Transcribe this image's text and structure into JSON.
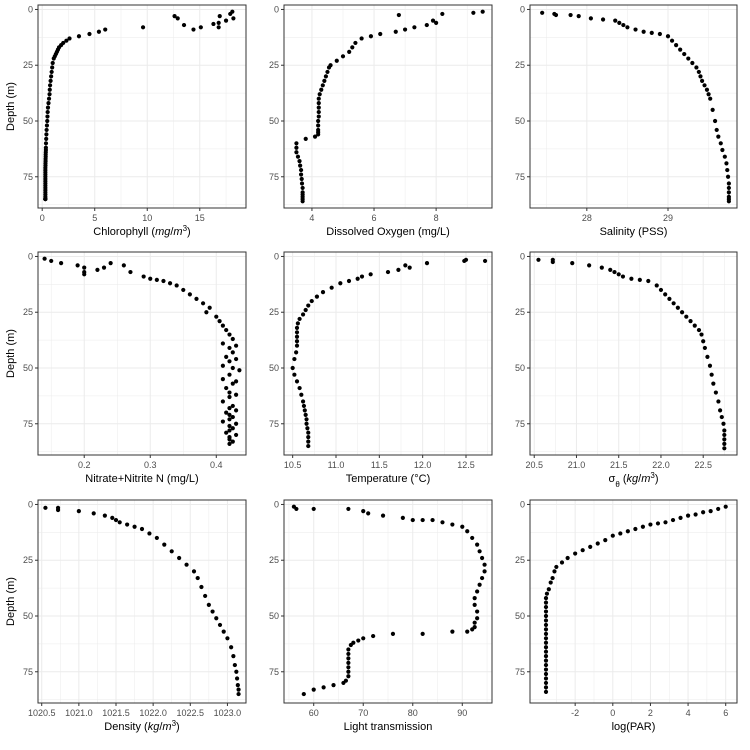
{
  "figure": {
    "background": "#ffffff",
    "grid_color": "#ebebeb",
    "border_color": "#333333",
    "point_color": "#000000"
  },
  "chart_data": [
    {
      "id": "chlorophyll",
      "type": "scatter",
      "ylabel": "Depth (m)",
      "xlabel": "Chlorophyll",
      "xlabel_unit": {
        "base": "mg",
        "sep": "/",
        "unit": "m",
        "sup": "3"
      },
      "xlim": [
        -0.4,
        19.4
      ],
      "ylim": [
        -2,
        89
      ],
      "y_reversed": true,
      "xticks": [
        0,
        5,
        10,
        15
      ],
      "xticklabels": [
        "0",
        "5",
        "10",
        "15"
      ],
      "yticks": [
        0,
        25,
        50,
        75
      ],
      "yticklabels": [
        "0",
        "25",
        "50",
        "75"
      ],
      "x": [
        18.1,
        17.9,
        16.9,
        18.2,
        12.6,
        12.9,
        17.5,
        16.8,
        16.3,
        13.5,
        15.1,
        14.4,
        16.8,
        6.0,
        9.6,
        5.4,
        4.5,
        3.5,
        2.6,
        2.3,
        2.0,
        1.8,
        1.6,
        1.5,
        1.4,
        1.3,
        1.2,
        1.1,
        1.0,
        0.95,
        0.9,
        0.85,
        0.8,
        0.75,
        0.72,
        0.7,
        0.65,
        0.6,
        0.55,
        0.52,
        0.5,
        0.48,
        0.45,
        0.42,
        0.4,
        0.38,
        0.36,
        0.35,
        0.35,
        0.34,
        0.33,
        0.33,
        0.32,
        0.32,
        0.31,
        0.31,
        0.3,
        0.3,
        0.3,
        0.3,
        0.3,
        0.3,
        0.3,
        0.3,
        0.3,
        0.3,
        0.3,
        0.3,
        0.3,
        0.3,
        0.3,
        0.3,
        0.3,
        0.3,
        0.3
      ],
      "y": [
        1,
        2,
        3,
        4,
        3,
        4,
        5,
        6,
        6.5,
        7,
        8,
        9,
        8,
        9,
        8,
        10,
        11,
        12,
        13,
        14,
        15,
        16,
        17,
        18,
        19,
        20,
        21,
        22,
        24,
        26,
        28,
        30,
        32,
        34,
        36,
        38,
        40,
        42,
        44,
        46,
        48,
        50,
        52,
        54,
        56,
        58,
        60,
        62,
        63,
        64,
        65,
        66,
        67,
        68,
        69,
        70,
        71,
        72,
        73,
        74,
        75,
        76,
        77,
        78,
        79,
        80,
        81,
        82,
        83,
        84,
        85,
        85,
        85,
        85,
        85
      ]
    },
    {
      "id": "oxygen",
      "type": "scatter",
      "xlabel": "Dissolved Oxygen (mg/L)",
      "xlim": [
        3.1,
        9.8
      ],
      "ylim": [
        -2,
        89
      ],
      "y_reversed": true,
      "xticks": [
        4,
        6,
        8
      ],
      "xticklabels": [
        "4",
        "6",
        "8"
      ],
      "yticks": [
        0,
        25,
        50,
        75
      ],
      "yticklabels": [
        "0",
        "25",
        "50",
        "75"
      ],
      "x": [
        9.5,
        9.2,
        8.2,
        6.8,
        7.9,
        8.0,
        7.7,
        7.3,
        7.0,
        6.7,
        6.2,
        5.9,
        5.6,
        5.4,
        5.3,
        5.2,
        5.0,
        4.8,
        4.6,
        4.55,
        4.5,
        4.45,
        4.4,
        4.35,
        4.3,
        4.25,
        4.22,
        4.22,
        4.22,
        4.22,
        4.22,
        4.2,
        4.2,
        4.2,
        4.2,
        4.2,
        4.1,
        3.8,
        3.5,
        3.5,
        3.5,
        3.55,
        3.6,
        3.62,
        3.65,
        3.65,
        3.67,
        3.68,
        3.7,
        3.7,
        3.7,
        3.7,
        3.7,
        3.7
      ],
      "y": [
        1,
        1.5,
        2,
        2.5,
        5,
        6,
        7,
        8,
        9,
        10,
        11,
        12,
        13,
        15,
        17,
        19,
        21,
        23,
        25,
        26,
        28,
        30,
        32,
        34,
        36,
        38,
        40,
        42,
        44,
        46,
        48,
        50,
        52,
        54,
        55,
        56,
        57,
        58,
        60,
        62,
        64,
        66,
        68,
        70,
        72,
        74,
        76,
        78,
        80,
        82,
        83,
        84,
        85,
        86
      ]
    },
    {
      "id": "salinity",
      "type": "scatter",
      "xlabel": "Salinity (PSS)",
      "xlim": [
        27.3,
        29.85
      ],
      "ylim": [
        -2,
        89
      ],
      "y_reversed": true,
      "xticks": [
        28,
        29
      ],
      "xticklabels": [
        "28",
        "29"
      ],
      "yticks": [
        0,
        25,
        50,
        75
      ],
      "yticklabels": [
        "0",
        "25",
        "50",
        "75"
      ],
      "x": [
        27.45,
        27.6,
        27.62,
        27.8,
        27.9,
        28.05,
        28.2,
        28.35,
        28.4,
        28.45,
        28.5,
        28.6,
        28.7,
        28.8,
        28.9,
        29.0,
        29.05,
        29.1,
        29.15,
        29.2,
        29.25,
        29.3,
        29.35,
        29.38,
        29.4,
        29.42,
        29.45,
        29.48,
        29.5,
        29.52,
        29.55,
        29.58,
        29.6,
        29.62,
        29.65,
        29.67,
        29.7,
        29.72,
        29.73,
        29.74,
        29.75,
        29.75,
        29.75,
        29.75,
        29.75,
        29.75
      ],
      "y": [
        1.5,
        2,
        2.5,
        2.5,
        3,
        4,
        4.5,
        5,
        6,
        7,
        8,
        9,
        10,
        10.5,
        11,
        12,
        14,
        16,
        18,
        20,
        22,
        24,
        26,
        28,
        30,
        32,
        34,
        36,
        38,
        40,
        45,
        50,
        54,
        57,
        60,
        63,
        66,
        69,
        72,
        75,
        78,
        80,
        82,
        84,
        85,
        86
      ]
    },
    {
      "id": "nitrate",
      "type": "scatter",
      "ylabel": "Depth (m)",
      "xlabel": "Nitrate+Nitrite N (mg/L)",
      "xlim": [
        0.13,
        0.445
      ],
      "ylim": [
        -2,
        89
      ],
      "y_reversed": true,
      "xticks": [
        0.2,
        0.3,
        0.4
      ],
      "xticklabels": [
        "0.2",
        "0.3",
        "0.4"
      ],
      "yticks": [
        0,
        25,
        50,
        75
      ],
      "yticklabels": [
        "0",
        "25",
        "50",
        "75"
      ],
      "x": [
        0.14,
        0.15,
        0.165,
        0.19,
        0.2,
        0.24,
        0.23,
        0.26,
        0.22,
        0.2,
        0.2,
        0.27,
        0.29,
        0.3,
        0.31,
        0.32,
        0.33,
        0.34,
        0.35,
        0.36,
        0.37,
        0.38,
        0.39,
        0.385,
        0.4,
        0.405,
        0.41,
        0.415,
        0.42,
        0.425,
        0.41,
        0.43,
        0.42,
        0.425,
        0.415,
        0.43,
        0.42,
        0.41,
        0.425,
        0.435,
        0.42,
        0.41,
        0.43,
        0.425,
        0.415,
        0.42,
        0.43,
        0.42,
        0.41,
        0.425,
        0.42,
        0.43,
        0.415,
        0.42,
        0.425,
        0.42,
        0.41,
        0.43,
        0.42,
        0.425,
        0.42,
        0.415,
        0.43,
        0.42,
        0.42,
        0.425,
        0.42
      ],
      "y": [
        1,
        2,
        3,
        4,
        5,
        3,
        5,
        4,
        6,
        7,
        8,
        7,
        9,
        10,
        10.5,
        11,
        12,
        13,
        15,
        17,
        19,
        21,
        23,
        25,
        27,
        29,
        31,
        33,
        35,
        37,
        39,
        40,
        41,
        43,
        45,
        46,
        47,
        49,
        50,
        51,
        53,
        55,
        56,
        57,
        59,
        61,
        62,
        63,
        65,
        67,
        68,
        69,
        70,
        71,
        72,
        73,
        74,
        75,
        76,
        77,
        78,
        79,
        80,
        81,
        82,
        83,
        84
      ]
    },
    {
      "id": "temperature",
      "type": "scatter",
      "xlabel": "Temperature (°C)",
      "xlim": [
        10.4,
        12.8
      ],
      "ylim": [
        -2,
        89
      ],
      "y_reversed": true,
      "xticks": [
        10.5,
        11.0,
        11.5,
        12.0,
        12.5
      ],
      "xticklabels": [
        "10.5",
        "11.0",
        "11.5",
        "12.0",
        "12.5"
      ],
      "yticks": [
        0,
        25,
        50,
        75
      ],
      "yticklabels": [
        "0",
        "25",
        "50",
        "75"
      ],
      "x": [
        12.72,
        12.5,
        12.48,
        12.05,
        11.8,
        11.85,
        11.72,
        11.6,
        11.4,
        11.3,
        11.25,
        11.15,
        11.05,
        10.95,
        10.85,
        10.78,
        10.72,
        10.68,
        10.65,
        10.62,
        10.58,
        10.56,
        10.55,
        10.55,
        10.55,
        10.55,
        10.55,
        10.54,
        10.52,
        10.5,
        10.52,
        10.55,
        10.58,
        10.6,
        10.62,
        10.63,
        10.64,
        10.65,
        10.66,
        10.66,
        10.67,
        10.68,
        10.68,
        10.68,
        10.68
      ],
      "y": [
        2,
        1.5,
        2,
        3,
        4,
        5,
        6,
        7,
        8,
        9,
        10,
        11,
        12,
        14,
        16,
        18,
        20,
        22,
        24,
        26,
        28,
        30,
        32,
        34,
        36,
        38,
        40,
        43,
        46,
        50,
        53,
        56,
        59,
        62,
        65,
        67,
        69,
        71,
        73,
        75,
        77,
        79,
        81,
        83,
        85
      ]
    },
    {
      "id": "sigma",
      "type": "scatter",
      "xlabel_unit": {
        "base": "σ",
        "sub": "θ",
        "sep": " ",
        "pre_unit": "kg",
        "slash": "/",
        "unit": "m",
        "sup": "3"
      },
      "xlim": [
        20.45,
        22.9
      ],
      "ylim": [
        -2,
        89
      ],
      "y_reversed": true,
      "xticks": [
        20.5,
        21.0,
        21.5,
        22.0,
        22.5
      ],
      "xticklabels": [
        "20.5",
        "21.0",
        "21.5",
        "22.0",
        "22.5"
      ],
      "yticks": [
        0,
        25,
        50,
        75
      ],
      "yticklabels": [
        "0",
        "25",
        "50",
        "75"
      ],
      "x": [
        20.55,
        20.72,
        20.72,
        20.95,
        21.15,
        21.3,
        21.4,
        21.45,
        21.5,
        21.55,
        21.65,
        21.75,
        21.85,
        21.95,
        22.0,
        22.05,
        22.1,
        22.15,
        22.2,
        22.25,
        22.3,
        22.35,
        22.4,
        22.45,
        22.48,
        22.5,
        22.52,
        22.55,
        22.58,
        22.6,
        22.62,
        22.65,
        22.68,
        22.7,
        22.72,
        22.74,
        22.75,
        22.75,
        22.75,
        22.75,
        22.75
      ],
      "y": [
        1.5,
        1.5,
        2.5,
        3,
        4,
        5,
        6,
        7,
        8,
        9,
        10,
        10.5,
        11,
        13,
        15,
        17,
        19,
        21,
        23,
        25,
        27,
        29,
        31,
        33,
        35,
        38,
        41,
        45,
        49,
        53,
        57,
        61,
        65,
        69,
        72,
        75,
        78,
        80,
        82,
        84,
        86
      ]
    },
    {
      "id": "density",
      "type": "scatter",
      "ylabel": "Depth (m)",
      "xlabel_unit": {
        "base": "Density",
        "sep": " ",
        "pre_unit": "kg",
        "slash": "/",
        "unit": "m",
        "sup": "3"
      },
      "xlim": [
        1020.45,
        1023.25
      ],
      "ylim": [
        -2,
        89
      ],
      "y_reversed": true,
      "xticks": [
        1020.5,
        1021.0,
        1021.5,
        1022.0,
        1022.5,
        1023.0
      ],
      "xticklabels": [
        "1020.5",
        "1021.0",
        "1021.5",
        "1022.0",
        "1022.5",
        "1023.0"
      ],
      "yticks": [
        0,
        25,
        50,
        75
      ],
      "yticklabels": [
        "0",
        "25",
        "50",
        "75"
      ],
      "x": [
        1020.55,
        1020.72,
        1020.72,
        1021.0,
        1021.2,
        1021.35,
        1021.45,
        1021.5,
        1021.55,
        1021.65,
        1021.75,
        1021.85,
        1021.95,
        1022.05,
        1022.15,
        1022.25,
        1022.35,
        1022.45,
        1022.55,
        1022.6,
        1022.65,
        1022.7,
        1022.75,
        1022.8,
        1022.85,
        1022.9,
        1022.95,
        1023.0,
        1023.05,
        1023.08,
        1023.1,
        1023.12,
        1023.13,
        1023.14,
        1023.15,
        1023.15
      ],
      "y": [
        1.5,
        1.5,
        2.5,
        3,
        4,
        5,
        6,
        7,
        8,
        9,
        10,
        11,
        13,
        15,
        18,
        21,
        24,
        27,
        30,
        33,
        37,
        41,
        45,
        48,
        51,
        54,
        57,
        60,
        64,
        68,
        72,
        75,
        78,
        81,
        83,
        85
      ]
    },
    {
      "id": "light",
      "type": "scatter",
      "xlabel": "Light transmission",
      "xlim": [
        54,
        96
      ],
      "ylim": [
        -2,
        89
      ],
      "y_reversed": true,
      "xticks": [
        60,
        70,
        80,
        90
      ],
      "xticklabels": [
        "60",
        "70",
        "80",
        "90"
      ],
      "yticks": [
        0,
        25,
        50,
        75
      ],
      "yticklabels": [
        "0",
        "25",
        "50",
        "75"
      ],
      "x": [
        56,
        56.5,
        60,
        67,
        70,
        71,
        74,
        78,
        80,
        82,
        84,
        86,
        88,
        90,
        91,
        92,
        93,
        93.5,
        94,
        94.5,
        94.5,
        94,
        93.5,
        93,
        92.5,
        92.5,
        93,
        93,
        92.5,
        92.5,
        92,
        91,
        88,
        82,
        76,
        72,
        70,
        69,
        68,
        67.5,
        67,
        67,
        67,
        67,
        67,
        67,
        67,
        66.5,
        66,
        64,
        62,
        60,
        58
      ],
      "y": [
        1,
        2,
        2,
        2,
        3,
        4,
        5,
        6,
        7,
        7,
        7,
        8,
        9,
        10,
        12,
        15,
        18,
        21,
        24,
        27,
        30,
        33,
        36,
        39,
        42,
        45,
        48,
        51,
        53,
        55,
        56,
        57,
        57,
        58,
        58,
        59,
        60,
        61,
        62,
        63,
        65,
        67,
        69,
        71,
        73,
        75,
        77,
        79,
        80,
        81,
        82,
        83,
        85
      ]
    },
    {
      "id": "par",
      "type": "scatter",
      "xlabel": "log(PAR)",
      "xlim": [
        -4.4,
        6.6
      ],
      "ylim": [
        -2,
        89
      ],
      "y_reversed": true,
      "xticks": [
        -2,
        0,
        2,
        4,
        6
      ],
      "xticklabels": [
        "-2",
        "0",
        "2",
        "4",
        "6"
      ],
      "yticks": [
        0,
        25,
        50,
        75
      ],
      "yticklabels": [
        "0",
        "25",
        "50",
        "75"
      ],
      "x": [
        6.0,
        5.6,
        5.2,
        4.8,
        4.4,
        4.0,
        3.6,
        3.2,
        2.8,
        2.4,
        2.0,
        1.6,
        1.2,
        0.8,
        0.4,
        0.0,
        -0.4,
        -0.8,
        -1.2,
        -1.6,
        -2.0,
        -2.4,
        -2.7,
        -3.0,
        -3.1,
        -3.2,
        -3.3,
        -3.4,
        -3.5,
        -3.55,
        -3.55,
        -3.55,
        -3.55,
        -3.55,
        -3.55,
        -3.55,
        -3.55,
        -3.55,
        -3.55,
        -3.55,
        -3.55,
        -3.55,
        -3.55,
        -3.55,
        -3.55,
        -3.55,
        -3.55,
        -3.55,
        -3.55,
        -3.55,
        -3.55
      ],
      "y": [
        1,
        2,
        3,
        3.5,
        4.5,
        5,
        6,
        7,
        8,
        8.5,
        9,
        10,
        11,
        12,
        13,
        14,
        16,
        17.5,
        19,
        20.5,
        22,
        24,
        26,
        28,
        30,
        33,
        35,
        38,
        40,
        42,
        44,
        46,
        48,
        50,
        52,
        54,
        56,
        58,
        60,
        62,
        64,
        66,
        68,
        70,
        72,
        74,
        76,
        78,
        80,
        82,
        84
      ]
    }
  ]
}
